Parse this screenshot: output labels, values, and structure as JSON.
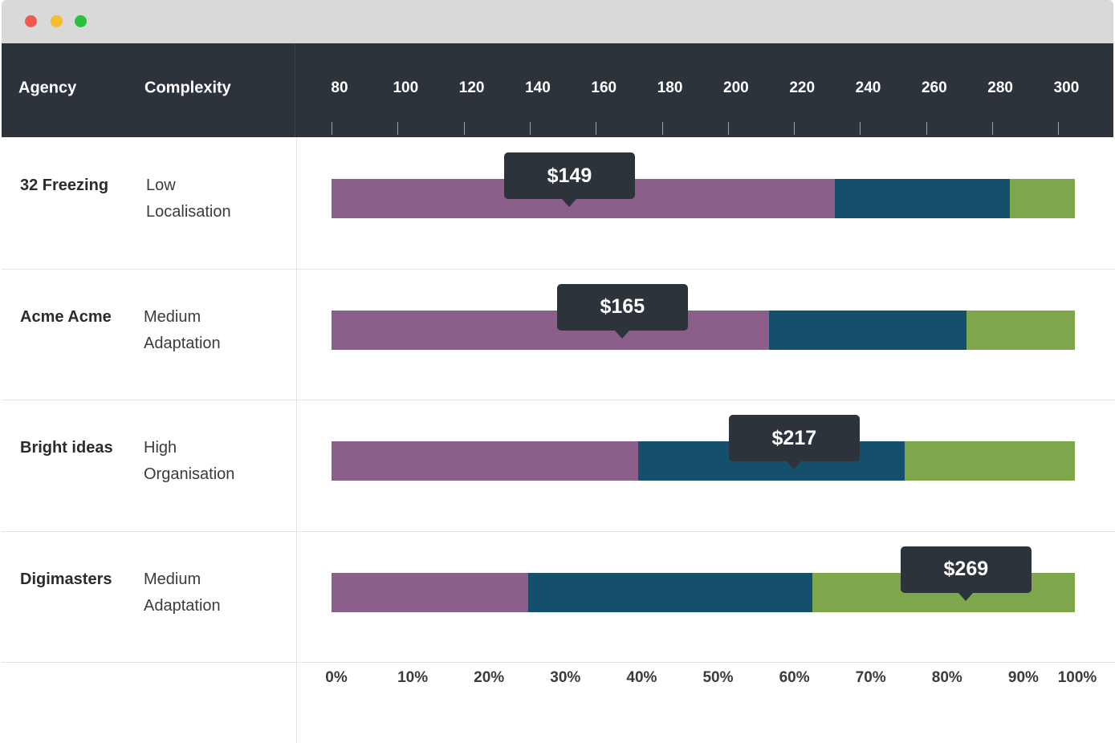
{
  "window": {
    "controls": [
      {
        "name": "close",
        "color": "#ee5a52"
      },
      {
        "name": "minimize",
        "color": "#f4be2c"
      },
      {
        "name": "maximize",
        "color": "#27c33d"
      }
    ]
  },
  "header": {
    "agency_label": "Agency",
    "complexity_label": "Complexity"
  },
  "colors": {
    "segment_1": "#8c5f8b",
    "segment_2": "#14506b",
    "segment_3": "#7ea74b",
    "header_bg": "#2d333b"
  },
  "chart_data": {
    "type": "bar",
    "orientation": "horizontal-stacked",
    "price_axis": {
      "ticks": [
        "80",
        "100",
        "120",
        "140",
        "160",
        "180",
        "200",
        "220",
        "240",
        "260",
        "280",
        "300"
      ],
      "range": [
        80,
        305
      ]
    },
    "percent_axis": {
      "ticks": [
        "0%",
        "10%",
        "20%",
        "30%",
        "40%",
        "50%",
        "60%",
        "70%",
        "80%",
        "90%",
        "100%"
      ],
      "range": [
        0,
        100
      ]
    },
    "rows": [
      {
        "agency": "32 Freezing",
        "complexity_line1": "Low",
        "complexity_line2": "Localisation",
        "price": 149,
        "price_label": "$149",
        "segments": [
          67.7,
          23.5,
          8.8
        ]
      },
      {
        "agency": "Acme Acme",
        "complexity_line1": "Medium",
        "complexity_line2": "Adaptation",
        "price": 165,
        "price_label": "$165",
        "segments": [
          58.9,
          26.5,
          14.6
        ]
      },
      {
        "agency": "Bright ideas",
        "complexity_line1": "High",
        "complexity_line2": "Organisation",
        "price": 217,
        "price_label": "$217",
        "segments": [
          41.2,
          35.9,
          22.9
        ]
      },
      {
        "agency": "Digimasters",
        "complexity_line1": "Medium",
        "complexity_line2": "Adaptation",
        "price": 269,
        "price_label": "$269",
        "segments": [
          26.5,
          38.2,
          35.3
        ]
      }
    ]
  }
}
